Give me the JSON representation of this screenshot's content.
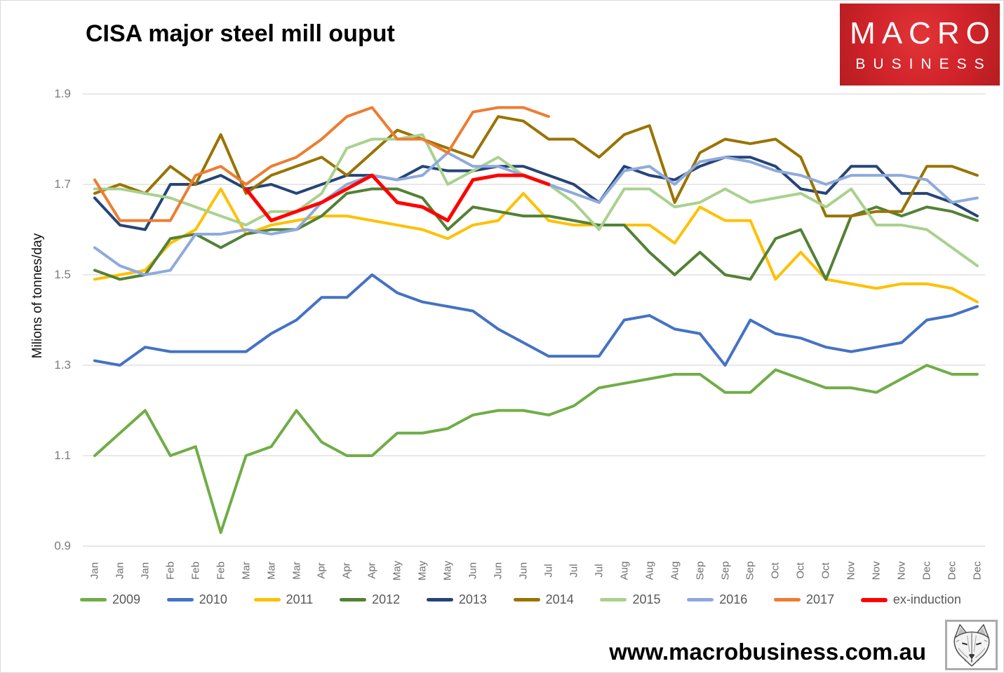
{
  "header": {
    "title": "CISA major steel mill ouput"
  },
  "logo": {
    "line1": "MACRO",
    "line2": "BUSINESS",
    "bg_color": "#D0232A"
  },
  "footer": {
    "url": "www.macrobusiness.com.au",
    "wolf_logo": "wolf-sketch"
  },
  "chart_data": {
    "type": "line",
    "title": "CISA major steel mill ouput",
    "xlabel": "",
    "ylabel": "Milions of tonnes/day",
    "ylim": [
      0.9,
      1.9
    ],
    "y_ticks": [
      "1.9",
      "1.7",
      "1.5",
      "1.3",
      "1.1",
      "0.9"
    ],
    "grid": "horizontal",
    "grid_color": "#D9D9D9",
    "legend_position": "bottom",
    "x_labels": [
      "Jan",
      "Jan",
      "Jan",
      "Feb",
      "Feb",
      "Feb",
      "Mar",
      "Mar",
      "Mar",
      "Apr",
      "Apr",
      "Apr",
      "May",
      "May",
      "May",
      "Jun",
      "Jun",
      "Jun",
      "Jul",
      "Jul",
      "Jul",
      "Aug",
      "Aug",
      "Aug",
      "Sep",
      "Sep",
      "Sep",
      "Oct",
      "Oct",
      "Oct",
      "Nov",
      "Nov",
      "Nov",
      "Dec",
      "Dec",
      "Dec"
    ],
    "series": [
      {
        "name": "2009",
        "color": "#70AD47",
        "values": [
          1.1,
          1.15,
          1.2,
          1.1,
          1.12,
          0.93,
          1.1,
          1.12,
          1.2,
          1.13,
          1.1,
          1.1,
          1.15,
          1.15,
          1.16,
          1.19,
          1.2,
          1.2,
          1.19,
          1.21,
          1.25,
          1.26,
          1.27,
          1.28,
          1.28,
          1.24,
          1.24,
          1.29,
          1.27,
          1.25,
          1.25,
          1.24,
          1.27,
          1.3,
          1.28,
          1.28
        ]
      },
      {
        "name": "2010",
        "color": "#4472C4",
        "values": [
          1.31,
          1.3,
          1.34,
          1.33,
          1.33,
          1.33,
          1.33,
          1.37,
          1.4,
          1.45,
          1.45,
          1.5,
          1.46,
          1.44,
          1.43,
          1.42,
          1.38,
          1.35,
          1.32,
          1.32,
          1.32,
          1.4,
          1.41,
          1.38,
          1.37,
          1.3,
          1.4,
          1.37,
          1.36,
          1.34,
          1.33,
          1.34,
          1.35,
          1.4,
          1.41,
          1.43
        ]
      },
      {
        "name": "2011",
        "color": "#FFC000",
        "values": [
          1.49,
          1.5,
          1.51,
          1.57,
          1.6,
          1.69,
          1.59,
          1.61,
          1.62,
          1.63,
          1.63,
          1.62,
          1.61,
          1.6,
          1.58,
          1.61,
          1.62,
          1.68,
          1.62,
          1.61,
          1.61,
          1.61,
          1.61,
          1.57,
          1.65,
          1.62,
          1.62,
          1.49,
          1.55,
          1.49,
          1.48,
          1.47,
          1.48,
          1.48,
          1.47,
          1.44
        ]
      },
      {
        "name": "2012",
        "color": "#538135",
        "values": [
          1.51,
          1.49,
          1.5,
          1.58,
          1.59,
          1.56,
          1.59,
          1.6,
          1.6,
          1.63,
          1.68,
          1.69,
          1.69,
          1.67,
          1.6,
          1.65,
          1.64,
          1.63,
          1.63,
          1.62,
          1.61,
          1.61,
          1.55,
          1.5,
          1.55,
          1.5,
          1.49,
          1.58,
          1.6,
          1.49,
          1.63,
          1.65,
          1.63,
          1.65,
          1.64,
          1.62
        ]
      },
      {
        "name": "2013",
        "color": "#264478",
        "values": [
          1.67,
          1.61,
          1.6,
          1.7,
          1.7,
          1.72,
          1.69,
          1.7,
          1.68,
          1.7,
          1.72,
          1.72,
          1.71,
          1.74,
          1.73,
          1.73,
          1.74,
          1.74,
          1.72,
          1.7,
          1.66,
          1.74,
          1.72,
          1.71,
          1.74,
          1.76,
          1.76,
          1.74,
          1.69,
          1.68,
          1.74,
          1.74,
          1.68,
          1.68,
          1.66,
          1.63
        ]
      },
      {
        "name": "2014",
        "color": "#997300",
        "values": [
          1.68,
          1.7,
          1.68,
          1.74,
          1.7,
          1.81,
          1.68,
          1.72,
          1.74,
          1.76,
          1.72,
          1.77,
          1.82,
          1.8,
          1.78,
          1.76,
          1.85,
          1.84,
          1.8,
          1.8,
          1.76,
          1.81,
          1.83,
          1.66,
          1.77,
          1.8,
          1.79,
          1.8,
          1.76,
          1.63,
          1.63,
          1.64,
          1.64,
          1.74,
          1.74,
          1.72
        ]
      },
      {
        "name": "2015",
        "color": "#A9D18E",
        "values": [
          1.69,
          1.69,
          1.68,
          1.67,
          1.65,
          1.63,
          1.61,
          1.64,
          1.64,
          1.68,
          1.78,
          1.8,
          1.8,
          1.81,
          1.7,
          1.73,
          1.76,
          1.72,
          1.7,
          1.66,
          1.6,
          1.69,
          1.69,
          1.65,
          1.66,
          1.69,
          1.66,
          1.67,
          1.68,
          1.65,
          1.69,
          1.61,
          1.61,
          1.6,
          1.56,
          1.52
        ]
      },
      {
        "name": "2016",
        "color": "#8FAADC",
        "values": [
          1.56,
          1.52,
          1.5,
          1.51,
          1.59,
          1.59,
          1.6,
          1.59,
          1.6,
          1.66,
          1.7,
          1.72,
          1.71,
          1.72,
          1.77,
          1.74,
          1.74,
          1.72,
          1.7,
          1.68,
          1.66,
          1.73,
          1.74,
          1.7,
          1.75,
          1.76,
          1.75,
          1.73,
          1.72,
          1.7,
          1.72,
          1.72,
          1.72,
          1.71,
          1.66,
          1.67
        ]
      },
      {
        "name": "2017",
        "color": "#ED7D31",
        "values": [
          1.71,
          1.62,
          1.62,
          1.62,
          1.72,
          1.74,
          1.7,
          1.74,
          1.76,
          1.8,
          1.85,
          1.87,
          1.8,
          1.8,
          1.77,
          1.86,
          1.87,
          1.87,
          1.85,
          null,
          null,
          null,
          null,
          null,
          null,
          null,
          null,
          null,
          null,
          null,
          null,
          null,
          null,
          null,
          null,
          null
        ]
      },
      {
        "name": "ex-induction",
        "color": "#FF0000",
        "values": [
          null,
          null,
          null,
          null,
          null,
          null,
          1.69,
          1.62,
          1.64,
          1.66,
          1.69,
          1.72,
          1.66,
          1.65,
          1.62,
          1.71,
          1.72,
          1.72,
          1.7,
          null,
          null,
          null,
          null,
          null,
          null,
          null,
          null,
          null,
          null,
          null,
          null,
          null,
          null,
          null,
          null,
          null
        ]
      }
    ]
  }
}
